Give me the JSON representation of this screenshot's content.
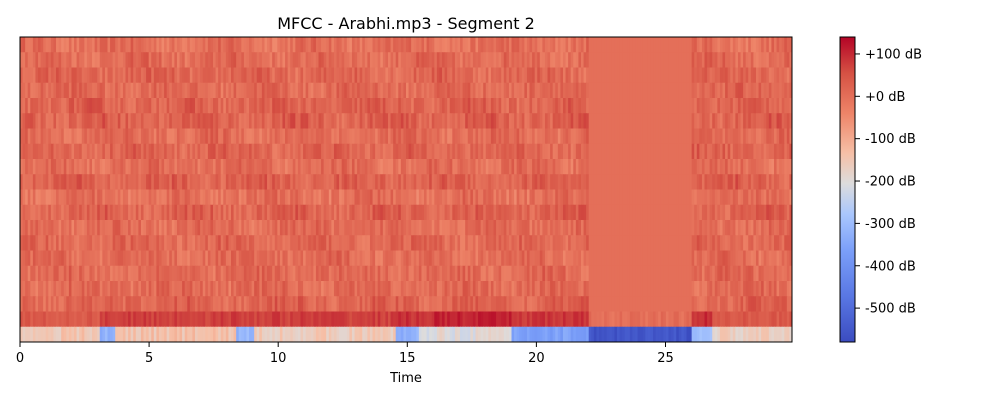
{
  "chart_data": {
    "type": "heatmap",
    "title": "MFCC - Arabhi.mp3 - Segment 2",
    "xlabel": "Time",
    "ylabel": "",
    "xlim": [
      0,
      29.9
    ],
    "x_ticks": [
      0,
      5,
      10,
      15,
      20,
      25
    ],
    "y_ticks": [],
    "grid": false,
    "n_coefficients": 20,
    "colormap": "coolwarm",
    "colorbar": {
      "range": [
        -580,
        140
      ],
      "ticks": [
        {
          "value": 100,
          "label": "+100 dB"
        },
        {
          "value": 0,
          "label": "+0 dB"
        },
        {
          "value": -100,
          "label": "-100 dB"
        },
        {
          "value": -200,
          "label": "-200 dB"
        },
        {
          "value": -300,
          "label": "-300 dB"
        },
        {
          "value": -400,
          "label": "-400 dB"
        },
        {
          "value": -500,
          "label": "-500 dB"
        }
      ],
      "placement": "right"
    },
    "regions": [
      {
        "t_start": 0,
        "t_end": 22.0,
        "description": "active audio, coefficients 2-20 around -10 to +40 dB"
      },
      {
        "t_start": 22.0,
        "t_end": 26.0,
        "description": "silence, coefficients 2-20 uniform near 0 dB"
      },
      {
        "t_start": 26.0,
        "t_end": 29.9,
        "description": "active audio"
      }
    ],
    "coefficient_1_dB": [
      {
        "t_start": 0,
        "t_end": 3.0,
        "value": -150
      },
      {
        "t_start": 3.0,
        "t_end": 3.6,
        "value": -330
      },
      {
        "t_start": 3.6,
        "t_end": 8.3,
        "value": -140
      },
      {
        "t_start": 8.3,
        "t_end": 9.0,
        "value": -320
      },
      {
        "t_start": 9.0,
        "t_end": 14.5,
        "value": -160
      },
      {
        "t_start": 14.5,
        "t_end": 15.4,
        "value": -330
      },
      {
        "t_start": 15.4,
        "t_end": 19.0,
        "value": -200
      },
      {
        "t_start": 19.0,
        "t_end": 22.0,
        "value": -360
      },
      {
        "t_start": 22.0,
        "t_end": 26.0,
        "value": -560
      },
      {
        "t_start": 26.0,
        "t_end": 26.8,
        "value": -300
      },
      {
        "t_start": 26.8,
        "t_end": 29.9,
        "value": -170
      }
    ],
    "coefficient_2_dB": [
      {
        "t_start": 0,
        "t_end": 3.0,
        "value": 40
      },
      {
        "t_start": 3.0,
        "t_end": 14.5,
        "value": 75
      },
      {
        "t_start": 14.5,
        "t_end": 16.0,
        "value": 90
      },
      {
        "t_start": 16.0,
        "t_end": 19.0,
        "value": 105
      },
      {
        "t_start": 19.0,
        "t_end": 22.0,
        "value": 85
      },
      {
        "t_start": 22.0,
        "t_end": 26.0,
        "value": 0
      },
      {
        "t_start": 26.0,
        "t_end": 26.8,
        "value": 95
      },
      {
        "t_start": 26.8,
        "t_end": 29.9,
        "value": 40
      }
    ]
  }
}
